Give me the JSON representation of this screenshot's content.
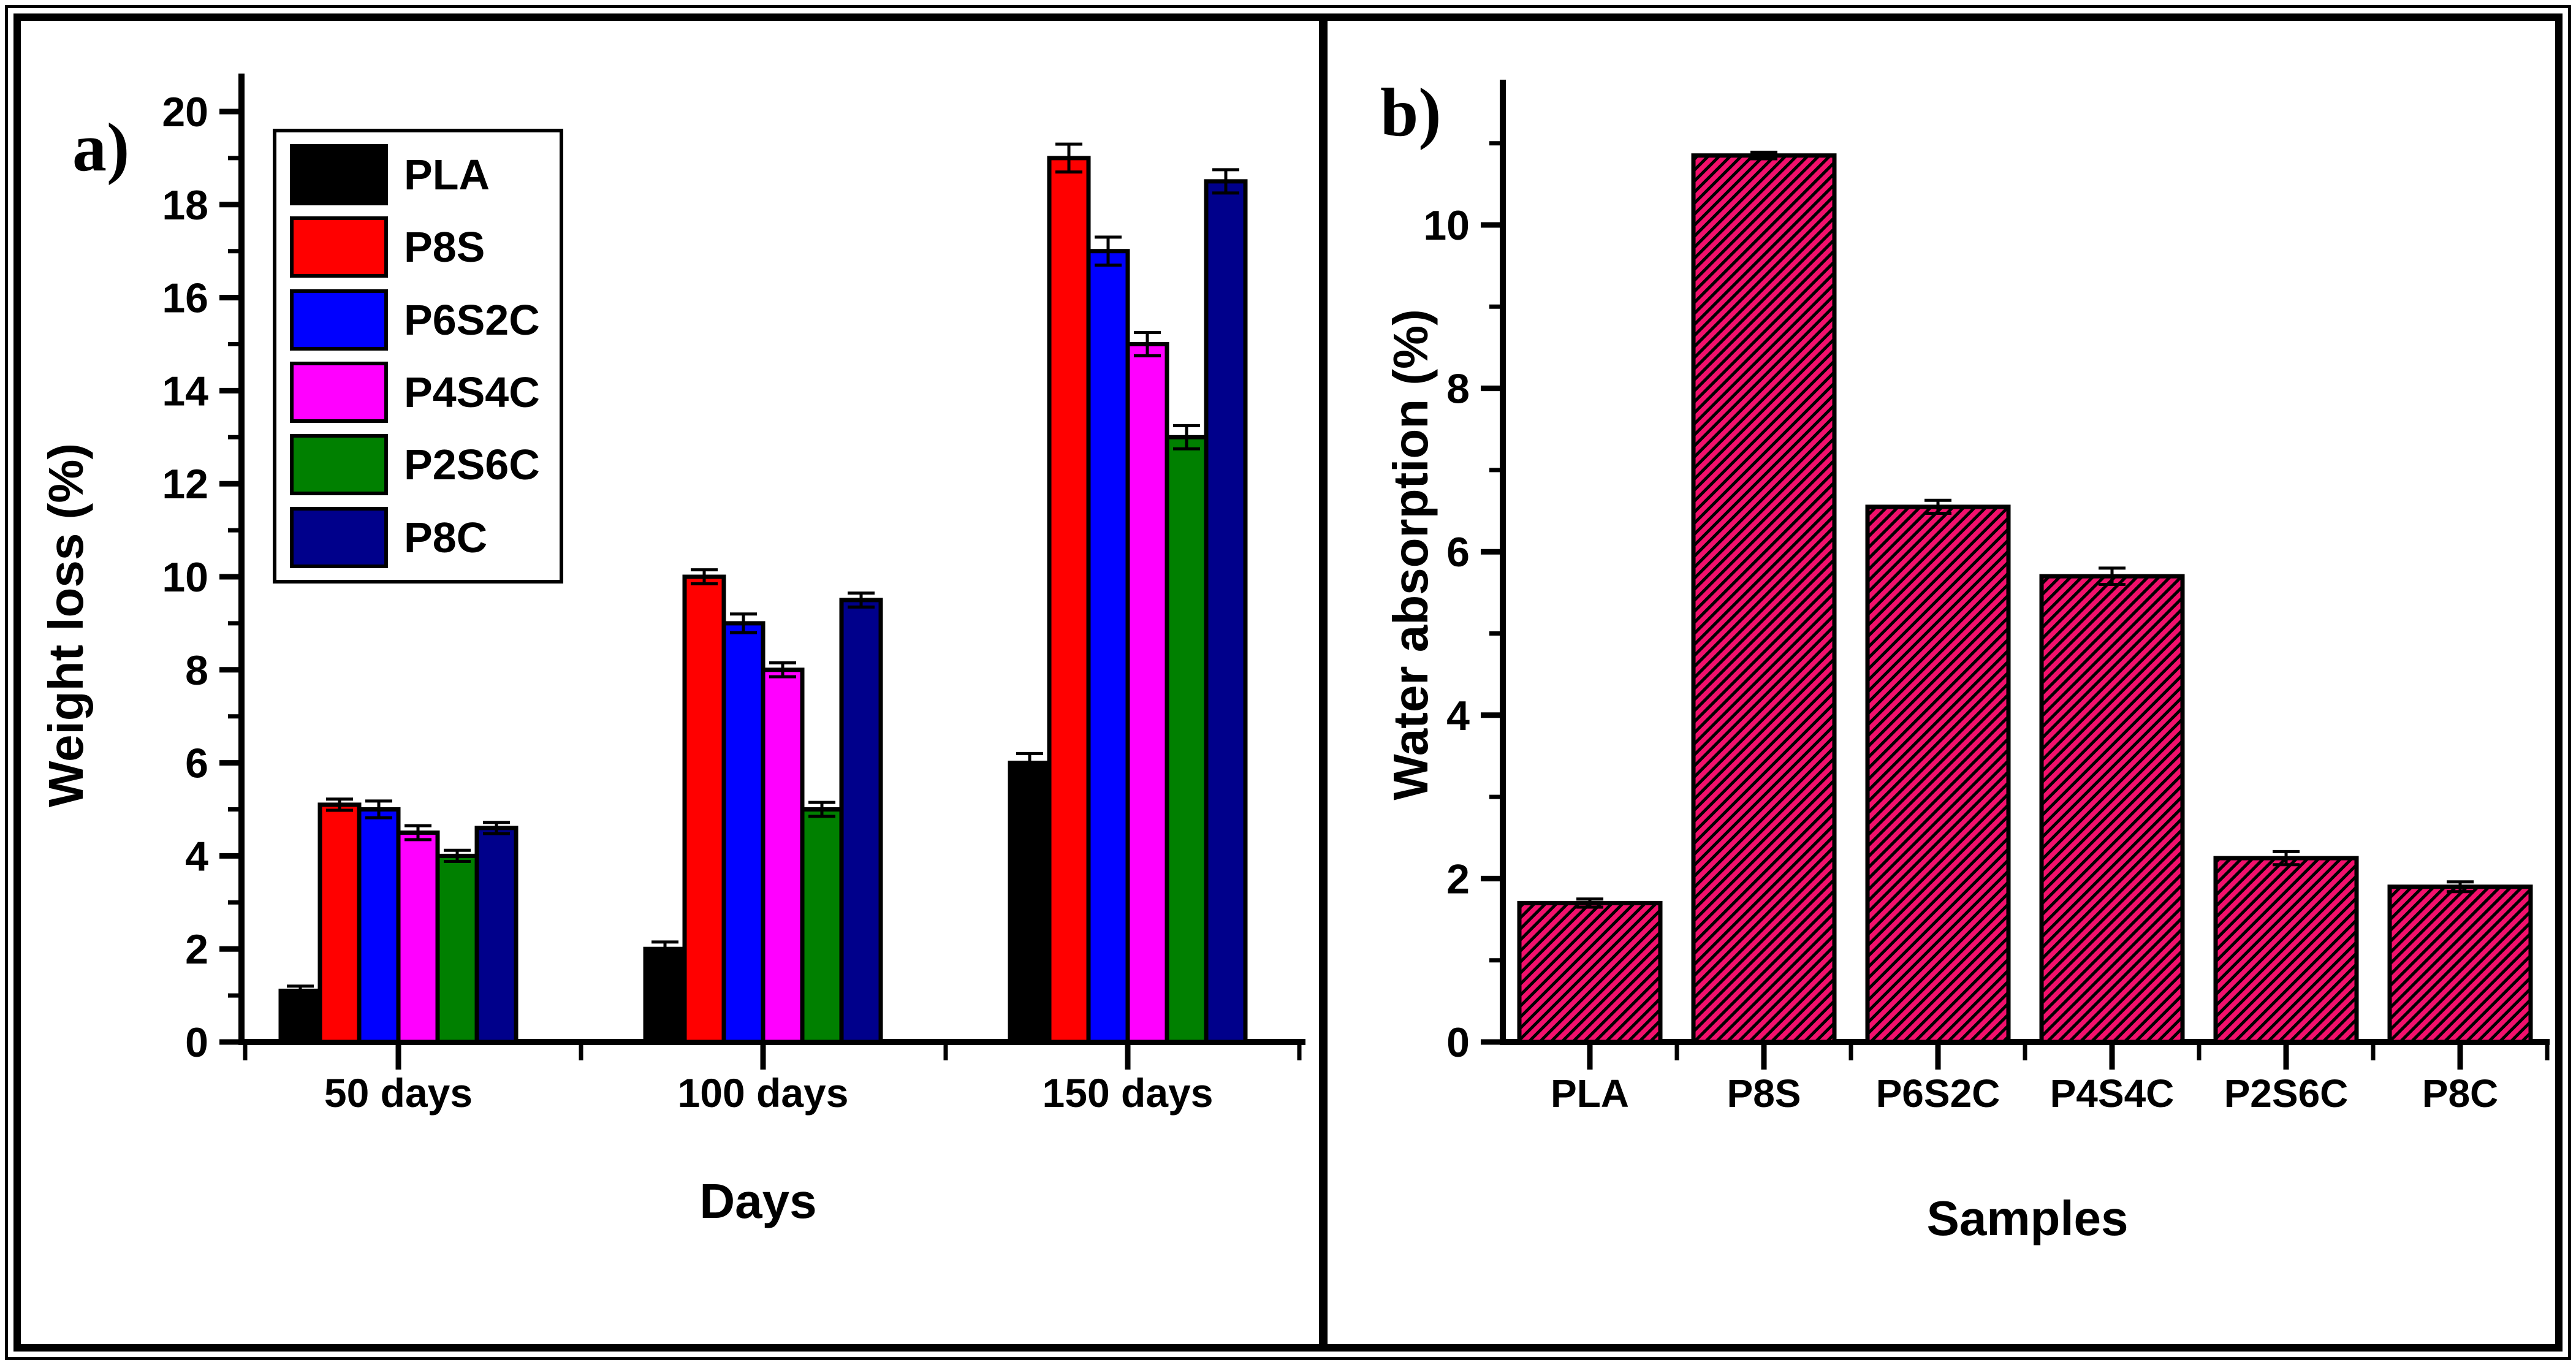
{
  "figure": {
    "panel_a_label": "a)",
    "panel_b_label": "b)"
  },
  "chart_data": [
    {
      "id": "a",
      "type": "bar",
      "title": "",
      "xlabel": "Days",
      "ylabel": "Weight loss (%)",
      "categories": [
        "50 days",
        "100 days",
        "150 days"
      ],
      "ylim": [
        0,
        20
      ],
      "yticks": [
        0,
        2,
        4,
        6,
        8,
        10,
        12,
        14,
        16,
        18,
        20
      ],
      "grid": false,
      "legend_position": "top-left",
      "series": [
        {
          "name": "PLA",
          "color": "#000000",
          "values": [
            1.1,
            2.0,
            6.0
          ],
          "errors": [
            0.1,
            0.15,
            0.2
          ]
        },
        {
          "name": "P8S",
          "color": "#ff0000",
          "values": [
            5.1,
            10.0,
            19.0
          ],
          "errors": [
            0.12,
            0.15,
            0.3
          ]
        },
        {
          "name": "P6S2C",
          "color": "#0000ff",
          "values": [
            5.0,
            9.0,
            17.0
          ],
          "errors": [
            0.18,
            0.2,
            0.3
          ]
        },
        {
          "name": "P4S4C",
          "color": "#ff00ff",
          "values": [
            4.5,
            8.0,
            15.0
          ],
          "errors": [
            0.15,
            0.15,
            0.25
          ]
        },
        {
          "name": "P2S6C",
          "color": "#008000",
          "values": [
            4.0,
            5.0,
            13.0
          ],
          "errors": [
            0.12,
            0.15,
            0.25
          ]
        },
        {
          "name": "P8C",
          "color": "#00008b",
          "values": [
            4.6,
            9.5,
            18.5
          ],
          "errors": [
            0.12,
            0.15,
            0.25
          ]
        }
      ]
    },
    {
      "id": "b",
      "type": "bar",
      "title": "",
      "xlabel": "Samples",
      "ylabel": "Water absorption (%)",
      "categories": [
        "PLA",
        "P8S",
        "P6S2C",
        "P4S4C",
        "P2S6C",
        "P8C"
      ],
      "ylim": [
        0,
        11.4
      ],
      "yticks": [
        0,
        2,
        4,
        6,
        8,
        10
      ],
      "grid": false,
      "bar_color": "#f2106c",
      "hatch": "diagonal-black",
      "values": [
        1.7,
        10.85,
        6.55,
        5.7,
        2.25,
        1.9
      ],
      "errors": [
        0.05,
        0.04,
        0.08,
        0.1,
        0.08,
        0.06
      ]
    }
  ]
}
